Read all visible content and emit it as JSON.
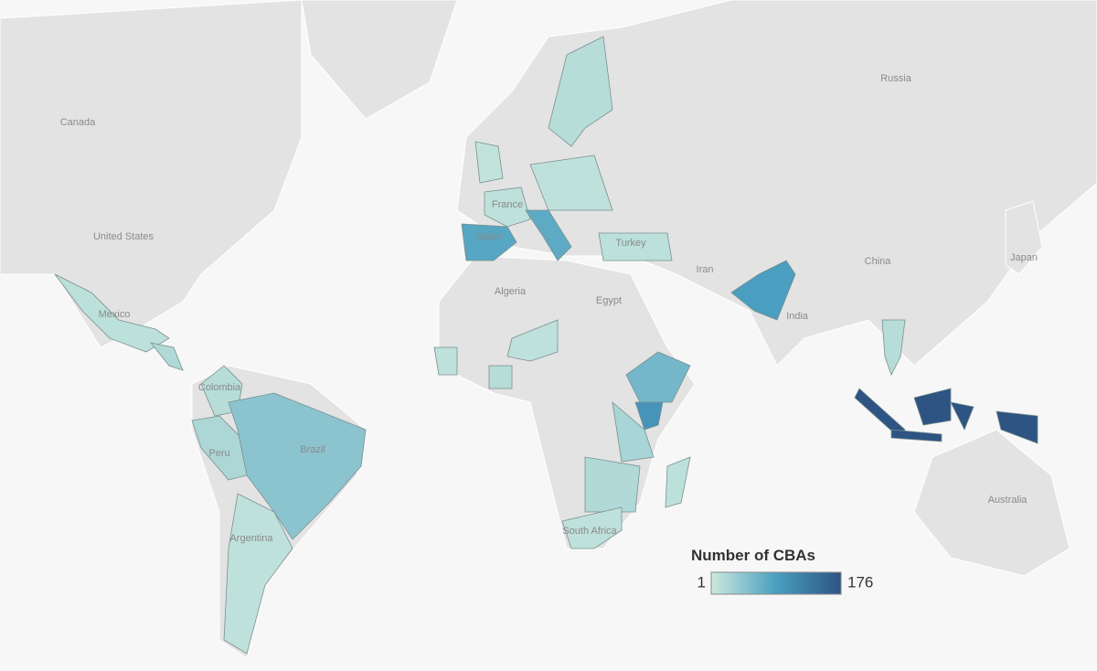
{
  "map": {
    "legend": {
      "title": "Number of CBAs",
      "min": 1,
      "max": 176,
      "colors": [
        "#cce9de",
        "#4a9fc0",
        "#2d5482"
      ]
    },
    "place_labels": [
      "Canada",
      "United States",
      "Russia",
      "China",
      "Japan",
      "India",
      "Iran",
      "Algeria",
      "Egypt",
      "Australia",
      "Mexico",
      "Colombia",
      "Peru",
      "Brazil",
      "Argentina",
      "Spain",
      "France",
      "Turkey",
      "South Africa"
    ],
    "region_values": [
      12,
      20,
      15,
      22,
      45,
      10,
      80,
      10,
      8,
      75,
      15,
      10,
      12,
      90,
      15,
      176,
      60,
      100,
      25,
      10,
      10,
      15,
      20,
      10,
      12
    ]
  }
}
